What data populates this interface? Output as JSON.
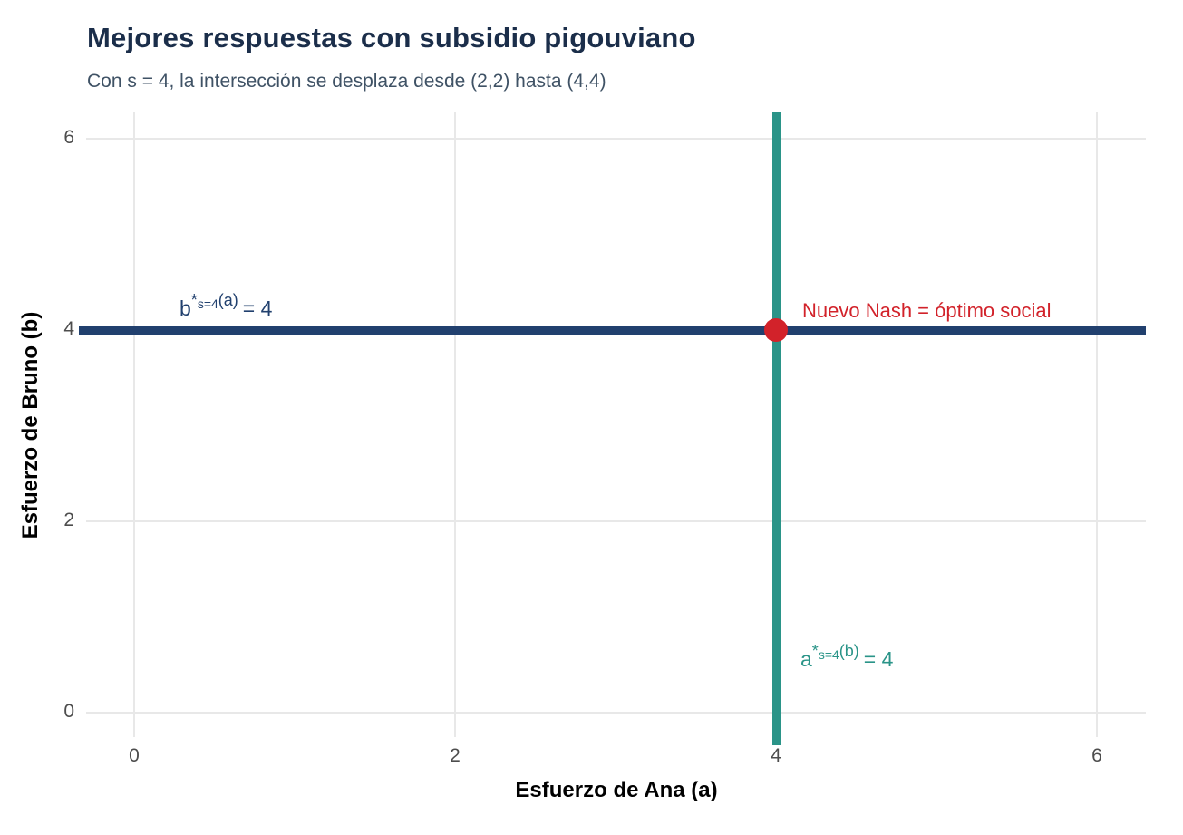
{
  "chart_data": {
    "type": "line",
    "title": "Mejores respuestas con subsidio pigouviano",
    "subtitle": "Con s = 4, la intersección se desplaza desde (2,2) hasta (4,4)",
    "xlabel": "Esfuerzo de Ana (a)",
    "ylabel": "Esfuerzo de Bruno (b)",
    "xlim": [
      -0.3,
      6.3
    ],
    "ylim": [
      -0.3,
      6.3
    ],
    "x_ticks": [
      0,
      2,
      4,
      6
    ],
    "y_ticks": [
      0,
      2,
      4,
      6
    ],
    "grid": true,
    "legend": "none",
    "series": [
      {
        "name": "best-response-bruno",
        "type": "hline",
        "y": 4,
        "color": "#21406E",
        "label": {
          "base": "b",
          "star": "*",
          "sub": "s=4",
          "arg": "(a)",
          "eq": "= 4"
        }
      },
      {
        "name": "best-response-ana",
        "type": "vline",
        "x": 4,
        "color": "#2A9488",
        "label": {
          "base": "a",
          "star": "*",
          "sub": "s=4",
          "arg": "(b)",
          "eq": "= 4"
        }
      },
      {
        "name": "nash-point",
        "type": "point",
        "x": 4,
        "y": 4,
        "color": "#D2222A",
        "label": "Nuevo Nash = óptimo social"
      }
    ]
  },
  "colors": {
    "title": "#1B2E4A",
    "subtitle": "#3F5265",
    "grid": "#E8E8E8",
    "tick_label": "#4D4D4D",
    "axis_title": "#000000",
    "background": "#FFFFFF"
  }
}
